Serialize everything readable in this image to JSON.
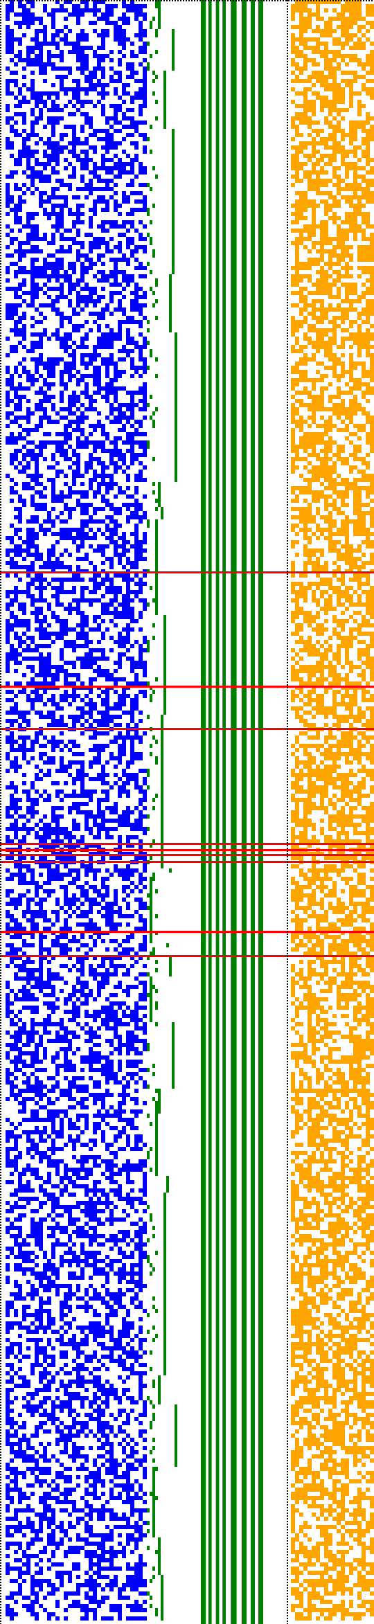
{
  "colors": {
    "background": "#ffffff",
    "blue_field": "#0000ff",
    "green_bars": "#008000",
    "orange_field": "#ffa500",
    "red_lines": "#ff0000",
    "dotted_border": "#000000"
  },
  "panels": {
    "blue_field": {
      "density": 0.5
    },
    "green_staircase": {
      "density": 0.5
    },
    "orange_field": {
      "density": 0.6
    }
  },
  "green_bar_columns": [
    {
      "start": 0.0,
      "end": 0.06
    },
    {
      "start": 0.09,
      "end": 0.13
    },
    {
      "start": 0.18,
      "end": 0.22
    },
    {
      "start": 0.26,
      "end": 0.3
    },
    {
      "start": 0.36,
      "end": 0.43
    },
    {
      "start": 0.49,
      "end": 0.55
    },
    {
      "start": 0.6,
      "end": 0.65
    },
    {
      "start": 0.69,
      "end": 0.75
    }
  ],
  "red_lines": [
    {
      "row": 0.352
    },
    {
      "row": 0.422
    },
    {
      "row": 0.448
    },
    {
      "row": 0.519
    },
    {
      "row": 0.523
    },
    {
      "row": 0.526
    },
    {
      "row": 0.53
    },
    {
      "row": 0.573
    },
    {
      "row": 0.588
    }
  ]
}
